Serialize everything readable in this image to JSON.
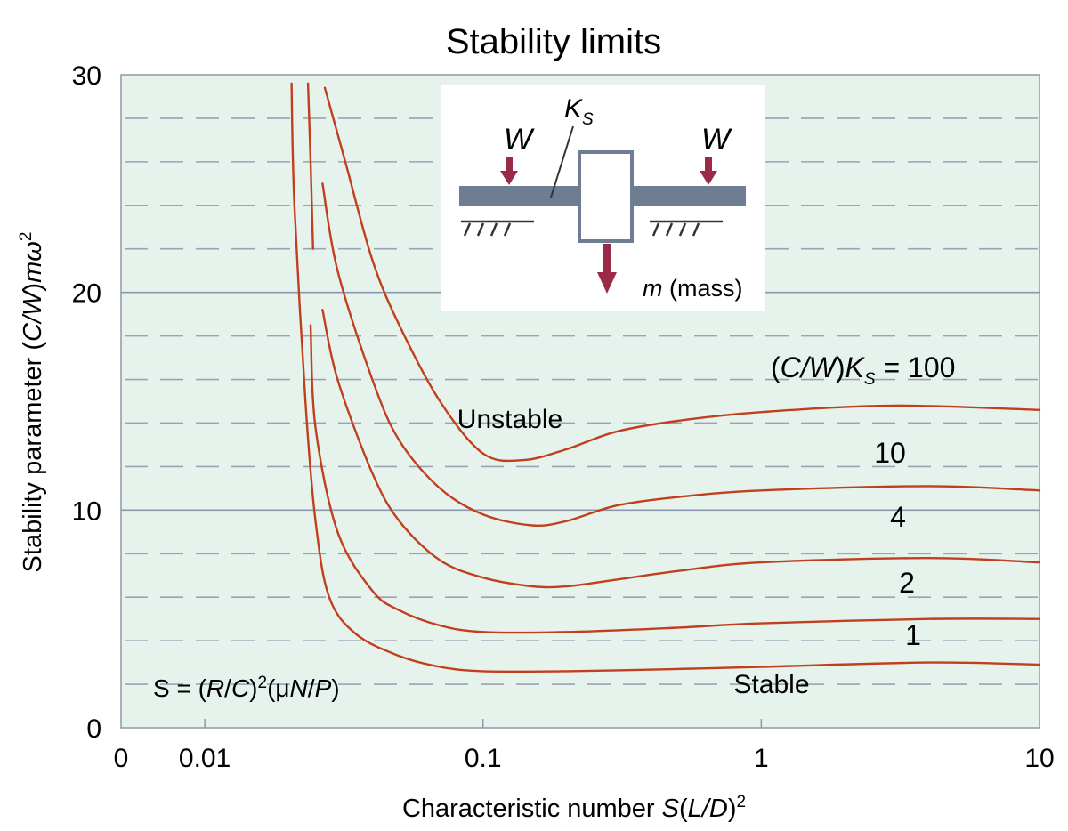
{
  "colors": {
    "plot_background": "#e6f3ec",
    "curve": "#c0401e",
    "grid_major": "#8b97ac",
    "grid_minor": "#9aa2b3",
    "frame": "#8f98a8",
    "beam": "#6f7d93",
    "arrow": "#9a2a48",
    "inset_background": "#ffffff"
  },
  "chart_data": {
    "type": "line",
    "title": "Stability limits",
    "xlabel": {
      "prefix": "Characteristic number ",
      "var": "S",
      "paren_open": "(",
      "ratio": "L/D",
      "paren_close": ")",
      "exp": "2"
    },
    "ylabel": {
      "prefix": "Stability parameter (",
      "ratio": "C/W",
      "close": ")",
      "mass": "m",
      "omega": "ω",
      "exp": "2"
    },
    "x_scale": "log",
    "x_ticks": [
      "0",
      "0.01",
      "0.1",
      "1",
      "10"
    ],
    "y_ticks": [
      "0",
      "10",
      "20",
      "30"
    ],
    "xlim": [
      0.005,
      10
    ],
    "ylim": [
      0,
      30
    ],
    "grid": {
      "major_solid_y": [
        10,
        20,
        30
      ],
      "dashed_y": [
        2,
        4,
        6,
        8,
        12,
        14,
        16,
        18,
        22,
        24,
        26,
        28
      ]
    },
    "legend_title": {
      "open": "(",
      "ratio": "C/W",
      "close": ")",
      "k": "K",
      "sub": "S",
      "eq": " = 100"
    },
    "series": [
      {
        "name": "100",
        "points": [
          [
            0.027,
            29.4
          ],
          [
            0.032,
            26
          ],
          [
            0.04,
            21.5
          ],
          [
            0.05,
            18.5
          ],
          [
            0.07,
            15
          ],
          [
            0.1,
            12.6
          ],
          [
            0.14,
            12.3
          ],
          [
            0.2,
            12.8
          ],
          [
            0.3,
            13.6
          ],
          [
            0.5,
            14.1
          ],
          [
            1,
            14.5
          ],
          [
            3,
            14.8
          ],
          [
            10,
            14.6
          ]
        ]
      },
      {
        "name": "10",
        "points": [
          [
            0.0265,
            25
          ],
          [
            0.03,
            21
          ],
          [
            0.04,
            16
          ],
          [
            0.05,
            13.2
          ],
          [
            0.07,
            11
          ],
          [
            0.1,
            9.8
          ],
          [
            0.15,
            9.3
          ],
          [
            0.2,
            9.5
          ],
          [
            0.3,
            10.2
          ],
          [
            0.5,
            10.6
          ],
          [
            1,
            10.9
          ],
          [
            4,
            11.1
          ],
          [
            10,
            10.9
          ]
        ]
      },
      {
        "name": "4",
        "points": [
          [
            0.0265,
            19.2
          ],
          [
            0.03,
            16
          ],
          [
            0.04,
            11.7
          ],
          [
            0.05,
            9.5
          ],
          [
            0.07,
            7.7
          ],
          [
            0.1,
            6.9
          ],
          [
            0.15,
            6.5
          ],
          [
            0.2,
            6.5
          ],
          [
            0.3,
            6.8
          ],
          [
            0.5,
            7.2
          ],
          [
            1,
            7.6
          ],
          [
            4,
            7.8
          ],
          [
            10,
            7.6
          ]
        ]
      },
      {
        "name": "2",
        "points": [
          [
            0.024,
            18.5
          ],
          [
            0.025,
            13.8
          ],
          [
            0.03,
            9
          ],
          [
            0.04,
            6.3
          ],
          [
            0.05,
            5.4
          ],
          [
            0.07,
            4.7
          ],
          [
            0.1,
            4.4
          ],
          [
            0.2,
            4.4
          ],
          [
            0.5,
            4.6
          ],
          [
            1,
            4.8
          ],
          [
            4,
            5.0
          ],
          [
            10,
            5.0
          ]
        ]
      },
      {
        "name": "1",
        "points": [
          [
            0.0205,
            29.6
          ],
          [
            0.021,
            24
          ],
          [
            0.023,
            15
          ],
          [
            0.025,
            9.5
          ],
          [
            0.028,
            6
          ],
          [
            0.035,
            4.3
          ],
          [
            0.05,
            3.3
          ],
          [
            0.07,
            2.8
          ],
          [
            0.1,
            2.6
          ],
          [
            0.2,
            2.6
          ],
          [
            0.5,
            2.7
          ],
          [
            1,
            2.8
          ],
          [
            4,
            3.0
          ],
          [
            10,
            2.9
          ]
        ]
      },
      {
        "name": "",
        "points": [
          [
            0.0235,
            29.6
          ],
          [
            0.024,
            26
          ],
          [
            0.0245,
            22
          ]
        ]
      }
    ],
    "curve_labels": [
      "10",
      "4",
      "2",
      "1"
    ],
    "annotations": {
      "unstable": "Unstable",
      "stable": "Stable",
      "formula": {
        "lead": "S = (",
        "r": "R",
        "slash1": "/",
        "c": "C",
        "sq": ")",
        "exp": "2",
        "open": "(μ",
        "n": "N",
        "slash2": "/",
        "p": "P",
        "close": ")"
      }
    },
    "inset": {
      "load_label": "W",
      "spring_label": "K",
      "spring_sub": "S",
      "mass_var": "m",
      "mass_text": " (mass)"
    }
  }
}
